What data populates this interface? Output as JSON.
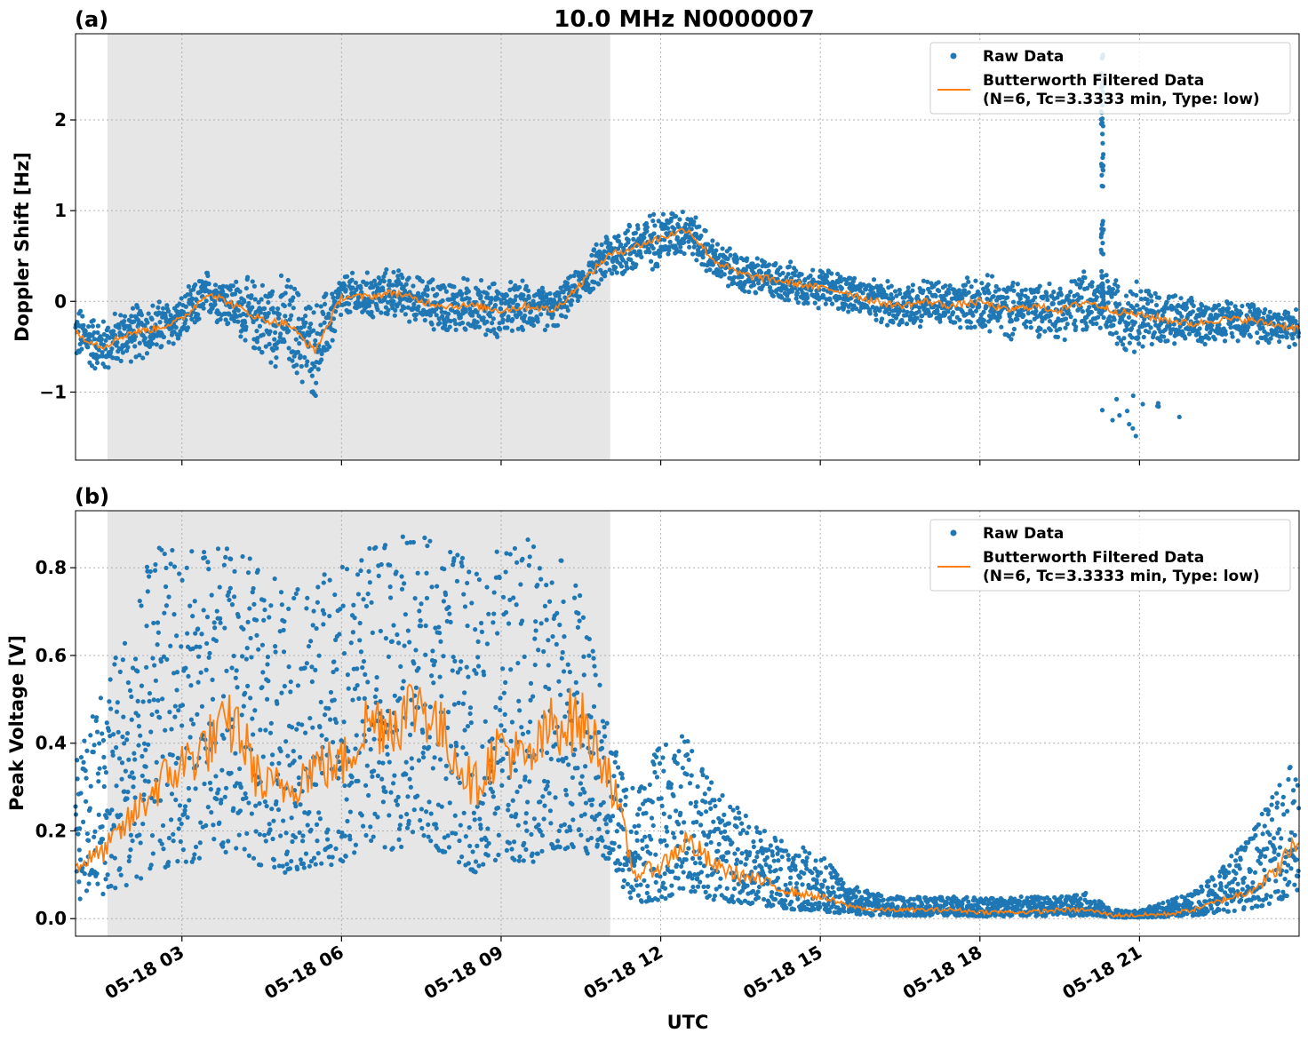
{
  "figure": {
    "title": "10.0 MHz N0000007",
    "xlabel": "UTC"
  },
  "colors": {
    "raw": "#1f77b4",
    "filtered": "#ff7f0e",
    "night_shade": "#e6e6e6",
    "grid": "#b0b0b0"
  },
  "legend": {
    "raw_label": "Raw Data",
    "filtered_label_line1": "Butterworth Filtered Data",
    "filtered_label_line2": "(N=6, Tc=3.3333 min, Type: low)"
  },
  "chart_data": [
    {
      "type": "scatter",
      "panel_label": "(a)",
      "ylabel": "Doppler Shift [Hz]",
      "x_unit": "hours UTC since 05-18 00:00",
      "xlim": [
        1.0,
        24.0
      ],
      "ylim": [
        -1.75,
        2.95
      ],
      "yticks": [
        -1,
        0,
        1,
        2
      ],
      "ytick_labels": [
        "−1",
        "0",
        "1",
        "2"
      ],
      "xticks": [
        3,
        6,
        9,
        12,
        15,
        18,
        21
      ],
      "xtick_labels": [
        "05-18 03",
        "05-18 06",
        "05-18 09",
        "05-18 12",
        "05-18 15",
        "05-18 18",
        "05-18 21"
      ],
      "shaded_span": [
        1.6,
        11.05
      ],
      "grid": true,
      "legend_position": "upper right",
      "series": [
        {
          "name": "Butterworth Filtered Data",
          "style": "line",
          "x": [
            1.0,
            1.5,
            2.0,
            2.5,
            3.0,
            3.5,
            4.0,
            4.5,
            5.0,
            5.5,
            6.0,
            6.5,
            7.0,
            7.5,
            8.0,
            8.5,
            9.0,
            9.5,
            10.0,
            10.5,
            11.0,
            11.5,
            12.0,
            12.5,
            13.0,
            13.5,
            14.0,
            14.5,
            15.0,
            15.5,
            16.0,
            16.5,
            17.0,
            17.5,
            18.0,
            18.5,
            19.0,
            19.5,
            20.0,
            20.5,
            21.0,
            21.5,
            22.0,
            22.5,
            23.0,
            23.5,
            24.0
          ],
          "y": [
            -0.35,
            -0.5,
            -0.35,
            -0.3,
            -0.2,
            0.1,
            -0.05,
            -0.2,
            -0.25,
            -0.55,
            0.05,
            0.05,
            0.1,
            0.0,
            -0.05,
            -0.05,
            -0.1,
            -0.05,
            -0.1,
            0.2,
            0.5,
            0.6,
            0.7,
            0.8,
            0.45,
            0.3,
            0.25,
            0.2,
            0.15,
            0.1,
            0.0,
            -0.05,
            0.0,
            -0.05,
            0.0,
            -0.1,
            -0.05,
            -0.1,
            0.0,
            -0.1,
            -0.15,
            -0.2,
            -0.25,
            -0.2,
            -0.2,
            -0.25,
            -0.3
          ]
        },
        {
          "name": "Raw Data",
          "style": "markers",
          "spread_hz": [
            0.35,
            0.35,
            0.35,
            0.35,
            0.3,
            0.3,
            0.35,
            0.5,
            0.6,
            0.6,
            0.3,
            0.3,
            0.3,
            0.3,
            0.35,
            0.35,
            0.35,
            0.3,
            0.25,
            0.2,
            0.35,
            0.35,
            0.35,
            0.3,
            0.25,
            0.25,
            0.25,
            0.25,
            0.25,
            0.25,
            0.25,
            0.3,
            0.3,
            0.3,
            0.35,
            0.35,
            0.35,
            0.35,
            0.4,
            0.45,
            0.45,
            0.35,
            0.3,
            0.25,
            0.25,
            0.25,
            0.25
          ]
        }
      ],
      "annotations": {
        "spike_x": 20.3,
        "spike_y_max": 2.75,
        "outlier_min": -1.5
      }
    },
    {
      "type": "scatter",
      "panel_label": "(b)",
      "ylabel": "Peak Voltage [V]",
      "x_unit": "hours UTC since 05-18 00:00",
      "xlim": [
        1.0,
        24.0
      ],
      "ylim": [
        -0.04,
        0.93
      ],
      "yticks": [
        0.0,
        0.2,
        0.4,
        0.6,
        0.8
      ],
      "ytick_labels": [
        "0.0",
        "0.2",
        "0.4",
        "0.6",
        "0.8"
      ],
      "xticks": [
        3,
        6,
        9,
        12,
        15,
        18,
        21
      ],
      "xtick_labels": [
        "05-18 03",
        "05-18 06",
        "05-18 09",
        "05-18 12",
        "05-18 15",
        "05-18 18",
        "05-18 21"
      ],
      "shaded_span": [
        1.6,
        11.05
      ],
      "grid": true,
      "legend_position": "upper right",
      "series": [
        {
          "name": "Butterworth Filtered Data",
          "style": "line",
          "x": [
            1.0,
            1.5,
            2.0,
            2.5,
            3.0,
            3.5,
            4.0,
            4.5,
            5.0,
            5.5,
            6.0,
            6.5,
            7.0,
            7.5,
            8.0,
            8.5,
            9.0,
            9.5,
            10.0,
            10.5,
            11.0,
            11.5,
            12.0,
            12.5,
            13.0,
            13.5,
            14.0,
            14.5,
            15.0,
            15.5,
            16.0,
            16.5,
            17.0,
            17.5,
            18.0,
            18.5,
            19.0,
            19.5,
            20.0,
            20.5,
            21.0,
            21.5,
            22.0,
            22.5,
            23.0,
            23.5,
            24.0
          ],
          "y": [
            0.12,
            0.15,
            0.22,
            0.3,
            0.35,
            0.4,
            0.45,
            0.3,
            0.3,
            0.35,
            0.35,
            0.45,
            0.45,
            0.5,
            0.4,
            0.3,
            0.4,
            0.35,
            0.45,
            0.45,
            0.35,
            0.1,
            0.12,
            0.18,
            0.12,
            0.1,
            0.08,
            0.06,
            0.05,
            0.03,
            0.02,
            0.02,
            0.02,
            0.02,
            0.015,
            0.015,
            0.015,
            0.02,
            0.02,
            0.008,
            0.008,
            0.01,
            0.02,
            0.04,
            0.06,
            0.1,
            0.18
          ]
        },
        {
          "name": "Raw Data",
          "style": "markers",
          "upper_envelope_v": [
            0.35,
            0.55,
            0.7,
            0.85,
            0.85,
            0.85,
            0.86,
            0.8,
            0.75,
            0.78,
            0.8,
            0.86,
            0.87,
            0.88,
            0.85,
            0.8,
            0.85,
            0.88,
            0.85,
            0.75,
            0.45,
            0.3,
            0.4,
            0.42,
            0.3,
            0.25,
            0.2,
            0.17,
            0.15,
            0.08,
            0.06,
            0.05,
            0.05,
            0.05,
            0.05,
            0.05,
            0.05,
            0.05,
            0.06,
            0.02,
            0.02,
            0.04,
            0.06,
            0.12,
            0.18,
            0.28,
            0.38
          ]
        }
      ]
    }
  ]
}
